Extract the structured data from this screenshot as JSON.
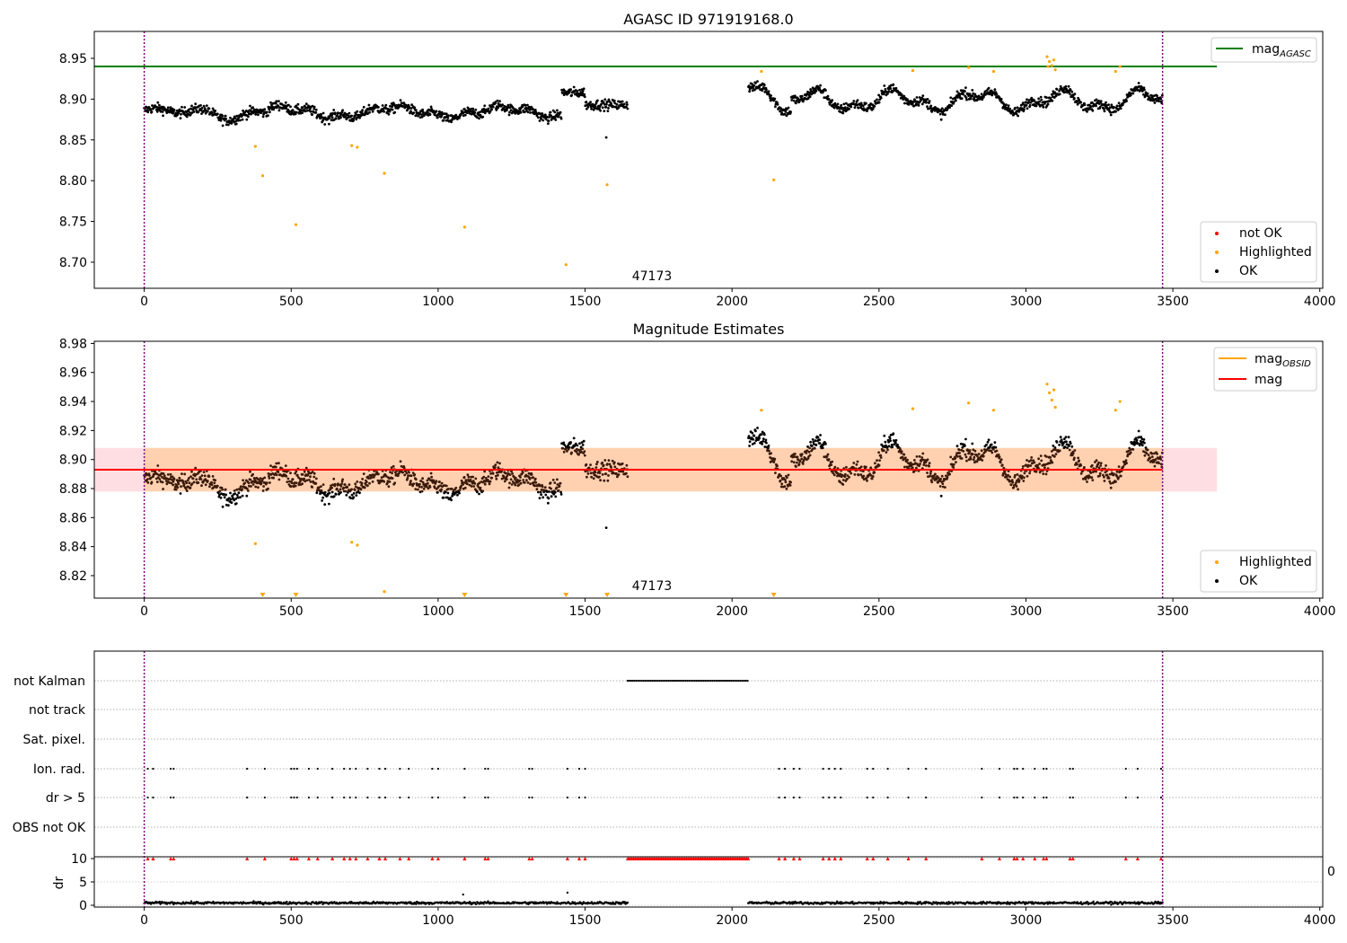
{
  "chart_data": [
    {
      "type": "scatter",
      "title": "AGASC ID 971919168.0",
      "xlim": [
        -170,
        4010
      ],
      "ylim": [
        8.668,
        8.983
      ],
      "xticks": [
        "0",
        "500",
        "1000",
        "1500",
        "2000",
        "2500",
        "3000",
        "3500",
        "4000"
      ],
      "yticks": [
        "8.70",
        "8.75",
        "8.80",
        "8.85",
        "8.90",
        "8.95"
      ],
      "annotation": "47173",
      "vlines": [
        0,
        3465
      ],
      "lines": [
        {
          "name": "mag",
          "name_sub": "AGASC",
          "y": 8.94,
          "x": [
            -170,
            3650
          ],
          "color": "#008000"
        }
      ],
      "legend_lines": [
        {
          "label": "mag",
          "label_sub": "AGASC",
          "color": "#008000"
        }
      ],
      "legend_points": [
        {
          "label": "not OK",
          "color": "#ff0000"
        },
        {
          "label": "Highlighted",
          "color": "#ffa500"
        },
        {
          "label": "OK",
          "color": "#000000"
        }
      ],
      "highlighted_points": [
        {
          "x": 378,
          "y": 8.842
        },
        {
          "x": 403,
          "y": 8.806
        },
        {
          "x": 516,
          "y": 8.746
        },
        {
          "x": 706,
          "y": 8.843
        },
        {
          "x": 725,
          "y": 8.841
        },
        {
          "x": 817,
          "y": 8.809
        },
        {
          "x": 1090,
          "y": 8.743
        },
        {
          "x": 1435,
          "y": 8.697
        },
        {
          "x": 1575,
          "y": 8.795
        },
        {
          "x": 2142,
          "y": 8.801
        },
        {
          "x": 2100,
          "y": 8.934
        },
        {
          "x": 2615,
          "y": 8.935
        },
        {
          "x": 2805,
          "y": 8.939
        },
        {
          "x": 2890,
          "y": 8.934
        },
        {
          "x": 3072,
          "y": 8.952
        },
        {
          "x": 3080,
          "y": 8.946
        },
        {
          "x": 3088,
          "y": 8.941
        },
        {
          "x": 3095,
          "y": 8.948
        },
        {
          "x": 3100,
          "y": 8.936
        },
        {
          "x": 3075,
          "y": 8.94
        },
        {
          "x": 3305,
          "y": 8.934
        },
        {
          "x": 3320,
          "y": 8.94
        }
      ],
      "ok_points": [
        {
          "x": 1572,
          "y": 8.853
        }
      ]
    },
    {
      "type": "scatter",
      "title": "Magnitude Estimates",
      "xlim": [
        -170,
        4010
      ],
      "ylim": [
        8.8045,
        8.9815
      ],
      "xticks": [
        "0",
        "500",
        "1000",
        "1500",
        "2000",
        "2500",
        "3000",
        "3500",
        "4000"
      ],
      "yticks": [
        "8.82",
        "8.84",
        "8.86",
        "8.88",
        "8.90",
        "8.92",
        "8.94",
        "8.96",
        "8.98"
      ],
      "annotation": "47173",
      "vlines": [
        0,
        3465
      ],
      "band": {
        "y0": 8.878,
        "y1": 8.908,
        "x": [
          -170,
          3650
        ]
      },
      "lines": [
        {
          "name": "mag",
          "y": 8.893,
          "x": [
            -170,
            3465
          ],
          "color": "#ff0000"
        }
      ],
      "legend_lines": [
        {
          "label": "mag",
          "label_sub": "OBSID",
          "color": "#ffa500"
        },
        {
          "label": "mag",
          "label_sub": "",
          "color": "#ff0000"
        }
      ],
      "legend_points": [
        {
          "label": "Highlighted",
          "color": "#ffa500"
        },
        {
          "label": "OK",
          "color": "#000000"
        }
      ],
      "highlighted_points": [
        {
          "x": 378,
          "y": 8.842
        },
        {
          "x": 706,
          "y": 8.843
        },
        {
          "x": 725,
          "y": 8.841
        },
        {
          "x": 817,
          "y": 8.809
        },
        {
          "x": 2100,
          "y": 8.934
        },
        {
          "x": 2615,
          "y": 8.935
        },
        {
          "x": 2805,
          "y": 8.939
        },
        {
          "x": 2890,
          "y": 8.934
        },
        {
          "x": 3072,
          "y": 8.952
        },
        {
          "x": 3080,
          "y": 8.946
        },
        {
          "x": 3088,
          "y": 8.941
        },
        {
          "x": 3095,
          "y": 8.948
        },
        {
          "x": 3100,
          "y": 8.936
        },
        {
          "x": 3305,
          "y": 8.934
        },
        {
          "x": 3320,
          "y": 8.94
        }
      ],
      "clipped_markers_x": [
        403,
        516,
        1090,
        1435,
        1575,
        2142
      ],
      "ok_points": [
        {
          "x": 1572,
          "y": 8.853
        }
      ]
    },
    {
      "type": "scatter",
      "title": "",
      "xlim": [
        -170,
        4010
      ],
      "xticks": [
        "0",
        "500",
        "1000",
        "1500",
        "2000",
        "2500",
        "3000",
        "3500",
        "4000"
      ],
      "vlines": [
        0,
        3465
      ],
      "flag_rows": [
        "not Kalman",
        "not track",
        "Sat. pixel.",
        "Ion. rad.",
        "dr > 5",
        "OBS not OK"
      ],
      "not_kalman_range": [
        1645,
        2055
      ],
      "flag_times": [
        12,
        30,
        90,
        100,
        350,
        410,
        500,
        510,
        520,
        560,
        590,
        640,
        680,
        700,
        720,
        760,
        800,
        820,
        870,
        900,
        980,
        1000,
        1090,
        1160,
        1170,
        1310,
        1320,
        1440,
        1480,
        1500,
        2160,
        2180,
        2210,
        2230,
        2310,
        2330,
        2350,
        2370,
        2460,
        2480,
        2530,
        2600,
        2660,
        2850,
        2910,
        2960,
        2970,
        2990,
        3030,
        3060,
        3070,
        3150,
        3160,
        3340,
        3380,
        3460
      ],
      "dr_ylabel": "dr",
      "dr_yticks": [
        "0",
        "5",
        "10"
      ],
      "dr_ylim": [
        0,
        10
      ],
      "dr_cap": 10,
      "dr_outliers": [
        {
          "x": 1085,
          "y": 2.3
        },
        {
          "x": 1440,
          "y": 2.7
        }
      ],
      "stray_label": "0"
    }
  ]
}
